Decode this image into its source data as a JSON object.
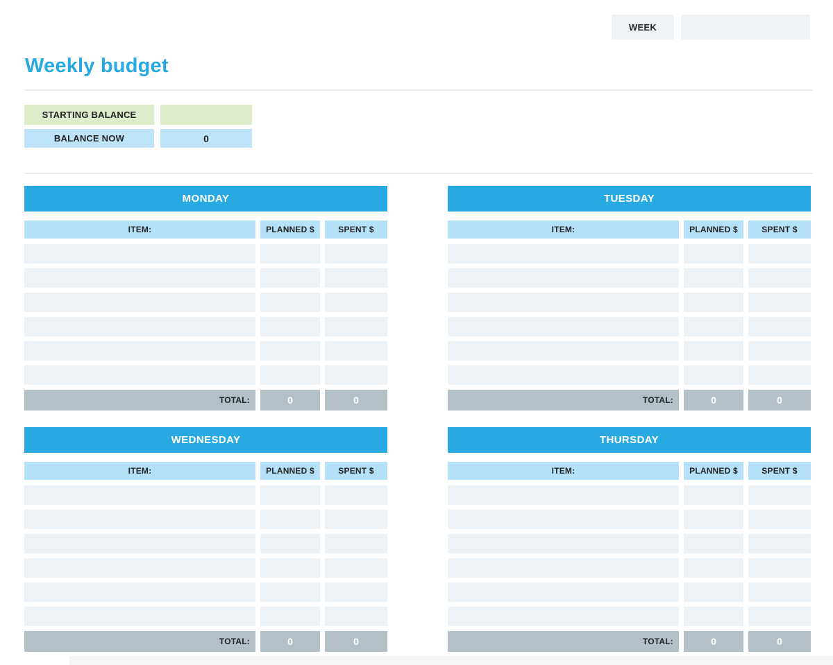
{
  "page": {
    "title": "Weekly budget"
  },
  "header": {
    "week_label": "WEEK",
    "week_value": ""
  },
  "balance": {
    "starting_label": "STARTING BALANCE",
    "starting_value": "",
    "now_label": "BALANCE NOW",
    "now_value": "0"
  },
  "tables": {
    "item_header": "ITEM:",
    "planned_header": "PLANNED $",
    "spent_header": "SPENT $",
    "total_label": "TOTAL:",
    "rows_per_day": 6
  },
  "days": [
    {
      "name": "MONDAY",
      "totals": {
        "planned": "0",
        "spent": "0"
      }
    },
    {
      "name": "TUESDAY",
      "totals": {
        "planned": "0",
        "spent": "0"
      }
    },
    {
      "name": "WEDNESDAY",
      "totals": {
        "planned": "0",
        "spent": "0"
      }
    },
    {
      "name": "THURSDAY",
      "totals": {
        "planned": "0",
        "spent": "0"
      }
    }
  ],
  "colors": {
    "accent-blue": "#29a9e2",
    "light-blue": "#b5e1f8",
    "row-bg": "#edf2f6",
    "total-bg": "#b3c0c8",
    "green": "#dfecca",
    "bal-blue": "#bee4f9",
    "box-gray": "#f0f3f6",
    "divider": "#ebedee",
    "text-dark": "#212325"
  }
}
